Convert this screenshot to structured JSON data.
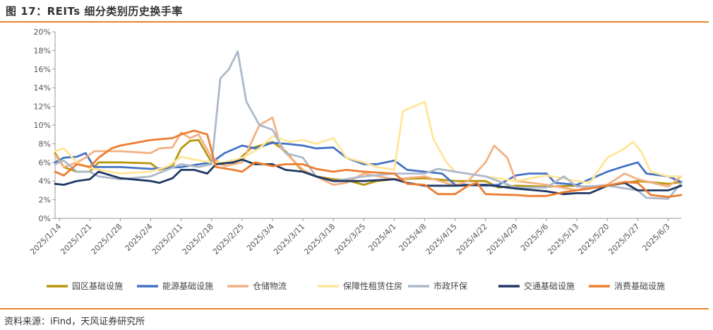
{
  "figure": {
    "title": "图 17：REITs 细分类别历史换手率",
    "source": "资料来源：iFind，天风证券研究所"
  },
  "chart_data": {
    "type": "line",
    "ylim": [
      0,
      20
    ],
    "y_ticks": [
      "0%",
      "2%",
      "4%",
      "6%",
      "8%",
      "10%",
      "12%",
      "14%",
      "16%",
      "18%",
      "20%"
    ],
    "x_ticks": [
      "2025/1/14",
      "2025/1/21",
      "2025/1/28",
      "2025/2/4",
      "2025/2/11",
      "2025/2/18",
      "2025/2/25",
      "2025/3/4",
      "2025/3/11",
      "2025/3/18",
      "2025/3/25",
      "2025/4/1",
      "2025/4/8",
      "2025/4/15",
      "2025/4/22",
      "2025/4/29",
      "2025/5/6",
      "2025/5/13",
      "2025/5/20",
      "2025/5/27",
      "2025/6/3"
    ],
    "x_range": [
      "2025/1/13",
      "2025/6/6"
    ],
    "grid": false,
    "legend_position": "bottom",
    "series": [
      {
        "name": "园区基础设施",
        "color": "#B8960C",
        "points": [
          [
            "2025/1/13",
            7.0
          ],
          [
            "2025/1/15",
            5.5
          ],
          [
            "2025/1/18",
            5.0
          ],
          [
            "2025/1/21",
            5.0
          ],
          [
            "2025/1/23",
            6.0
          ],
          [
            "2025/1/28",
            6.0
          ],
          [
            "2025/2/4",
            5.9
          ],
          [
            "2025/2/6",
            5.2
          ],
          [
            "2025/2/9",
            5.6
          ],
          [
            "2025/2/11",
            7.5
          ],
          [
            "2025/2/13",
            8.3
          ],
          [
            "2025/2/15",
            8.4
          ],
          [
            "2025/2/18",
            6.0
          ],
          [
            "2025/2/20",
            5.8
          ],
          [
            "2025/2/24",
            6.2
          ],
          [
            "2025/2/27",
            7.5
          ],
          [
            "2025/3/4",
            8.2
          ],
          [
            "2025/3/7",
            7.2
          ],
          [
            "2025/3/11",
            5.0
          ],
          [
            "2025/3/14",
            4.5
          ],
          [
            "2025/3/18",
            4.2
          ],
          [
            "2025/3/21",
            4.1
          ],
          [
            "2025/3/25",
            3.6
          ],
          [
            "2025/3/28",
            4.0
          ],
          [
            "2025/4/1",
            4.2
          ],
          [
            "2025/4/8",
            4.3
          ],
          [
            "2025/4/15",
            4.0
          ],
          [
            "2025/4/22",
            4.0
          ],
          [
            "2025/4/25",
            3.3
          ],
          [
            "2025/4/29",
            3.5
          ],
          [
            "2025/5/6",
            3.4
          ],
          [
            "2025/5/13",
            3.5
          ],
          [
            "2025/5/16",
            3.3
          ],
          [
            "2025/5/20",
            3.5
          ],
          [
            "2025/5/24",
            3.8
          ],
          [
            "2025/5/27",
            4.0
          ],
          [
            "2025/6/3",
            3.7
          ],
          [
            "2025/6/6",
            3.9
          ]
        ]
      },
      {
        "name": "能源基础设施",
        "color": "#4472C4",
        "points": [
          [
            "2025/1/13",
            6.0
          ],
          [
            "2025/1/15",
            6.5
          ],
          [
            "2025/1/18",
            6.6
          ],
          [
            "2025/1/20",
            7.0
          ],
          [
            "2025/1/22",
            5.5
          ],
          [
            "2025/1/28",
            5.5
          ],
          [
            "2025/2/4",
            5.3
          ],
          [
            "2025/2/11",
            5.5
          ],
          [
            "2025/2/18",
            6.0
          ],
          [
            "2025/2/21",
            7.0
          ],
          [
            "2025/2/25",
            7.8
          ],
          [
            "2025/2/28",
            7.5
          ],
          [
            "2025/3/4",
            8.1
          ],
          [
            "2025/3/7",
            8.0
          ],
          [
            "2025/3/11",
            7.8
          ],
          [
            "2025/3/14",
            7.5
          ],
          [
            "2025/3/18",
            7.6
          ],
          [
            "2025/3/21",
            6.5
          ],
          [
            "2025/3/25",
            5.8
          ],
          [
            "2025/3/28",
            5.8
          ],
          [
            "2025/4/1",
            6.2
          ],
          [
            "2025/4/4",
            5.2
          ],
          [
            "2025/4/8",
            5.0
          ],
          [
            "2025/4/12",
            4.8
          ],
          [
            "2025/4/15",
            3.6
          ],
          [
            "2025/4/18",
            3.6
          ],
          [
            "2025/4/22",
            3.5
          ],
          [
            "2025/4/25",
            3.6
          ],
          [
            "2025/4/29",
            4.6
          ],
          [
            "2025/5/2",
            4.8
          ],
          [
            "2025/5/6",
            4.8
          ],
          [
            "2025/5/8",
            3.8
          ],
          [
            "2025/5/13",
            3.6
          ],
          [
            "2025/5/16",
            4.2
          ],
          [
            "2025/5/20",
            5.0
          ],
          [
            "2025/5/24",
            5.6
          ],
          [
            "2025/5/27",
            6.0
          ],
          [
            "2025/5/29",
            4.8
          ],
          [
            "2025/6/3",
            4.5
          ],
          [
            "2025/6/6",
            3.9
          ]
        ]
      },
      {
        "name": "仓储物流",
        "color": "#F4B183",
        "points": [
          [
            "2025/1/13",
            6.8
          ],
          [
            "2025/1/15",
            5.5
          ],
          [
            "2025/1/18",
            6.0
          ],
          [
            "2025/1/20",
            6.5
          ],
          [
            "2025/1/22",
            7.2
          ],
          [
            "2025/1/28",
            7.2
          ],
          [
            "2025/2/4",
            7.0
          ],
          [
            "2025/2/6",
            7.5
          ],
          [
            "2025/2/9",
            7.6
          ],
          [
            "2025/2/11",
            9.2
          ],
          [
            "2025/2/13",
            8.6
          ],
          [
            "2025/2/15",
            9.0
          ],
          [
            "2025/2/18",
            6.5
          ],
          [
            "2025/2/21",
            5.6
          ],
          [
            "2025/2/25",
            6.0
          ],
          [
            "2025/2/27",
            8.0
          ],
          [
            "2025/3/1",
            10.0
          ],
          [
            "2025/3/4",
            10.8
          ],
          [
            "2025/3/6",
            7.5
          ],
          [
            "2025/3/11",
            5.2
          ],
          [
            "2025/3/14",
            4.5
          ],
          [
            "2025/3/18",
            3.6
          ],
          [
            "2025/3/21",
            3.8
          ],
          [
            "2025/3/25",
            4.8
          ],
          [
            "2025/4/1",
            4.2
          ],
          [
            "2025/4/8",
            4.5
          ],
          [
            "2025/4/15",
            3.5
          ],
          [
            "2025/4/18",
            4.0
          ],
          [
            "2025/4/22",
            6.0
          ],
          [
            "2025/4/24",
            7.8
          ],
          [
            "2025/4/27",
            6.5
          ],
          [
            "2025/4/29",
            4.0
          ],
          [
            "2025/5/6",
            3.6
          ],
          [
            "2025/5/13",
            3.0
          ],
          [
            "2025/5/16",
            3.4
          ],
          [
            "2025/5/20",
            3.6
          ],
          [
            "2025/5/24",
            4.8
          ],
          [
            "2025/5/27",
            4.2
          ],
          [
            "2025/6/3",
            3.4
          ],
          [
            "2025/6/6",
            4.5
          ]
        ]
      },
      {
        "name": "保障性租赁住房",
        "color": "#FFE699",
        "points": [
          [
            "2025/1/13",
            7.2
          ],
          [
            "2025/1/15",
            7.5
          ],
          [
            "2025/1/18",
            6.0
          ],
          [
            "2025/1/21",
            5.4
          ],
          [
            "2025/1/28",
            4.8
          ],
          [
            "2025/2/4",
            5.0
          ],
          [
            "2025/2/8",
            5.6
          ],
          [
            "2025/2/11",
            6.6
          ],
          [
            "2025/2/14",
            6.3
          ],
          [
            "2025/2/18",
            6.0
          ],
          [
            "2025/2/21",
            6.0
          ],
          [
            "2025/2/25",
            6.5
          ],
          [
            "2025/3/1",
            7.5
          ],
          [
            "2025/3/4",
            8.8
          ],
          [
            "2025/3/8",
            8.2
          ],
          [
            "2025/3/11",
            8.4
          ],
          [
            "2025/3/14",
            8.0
          ],
          [
            "2025/3/18",
            8.6
          ],
          [
            "2025/3/21",
            6.5
          ],
          [
            "2025/3/25",
            6.0
          ],
          [
            "2025/3/28",
            5.5
          ],
          [
            "2025/4/1",
            5.2
          ],
          [
            "2025/4/3",
            11.5
          ],
          [
            "2025/4/8",
            12.5
          ],
          [
            "2025/4/10",
            8.5
          ],
          [
            "2025/4/13",
            6.0
          ],
          [
            "2025/4/15",
            5.0
          ],
          [
            "2025/4/22",
            4.5
          ],
          [
            "2025/4/29",
            4.0
          ],
          [
            "2025/5/6",
            4.6
          ],
          [
            "2025/5/13",
            4.0
          ],
          [
            "2025/5/16",
            3.8
          ],
          [
            "2025/5/20",
            6.5
          ],
          [
            "2025/5/24",
            7.5
          ],
          [
            "2025/5/26",
            8.2
          ],
          [
            "2025/5/28",
            7.0
          ],
          [
            "2025/5/30",
            5.0
          ],
          [
            "2025/6/3",
            4.5
          ],
          [
            "2025/6/6",
            4.5
          ]
        ]
      },
      {
        "name": "市政环保",
        "color": "#ADB9CA",
        "points": [
          [
            "2025/1/13",
            5.8
          ],
          [
            "2025/1/15",
            6.2
          ],
          [
            "2025/1/18",
            5.0
          ],
          [
            "2025/1/21",
            5.0
          ],
          [
            "2025/1/23",
            4.5
          ],
          [
            "2025/1/28",
            4.2
          ],
          [
            "2025/2/4",
            4.5
          ],
          [
            "2025/2/11",
            5.8
          ],
          [
            "2025/2/15",
            5.5
          ],
          [
            "2025/2/18",
            5.8
          ],
          [
            "2025/2/20",
            15.0
          ],
          [
            "2025/2/22",
            16.0
          ],
          [
            "2025/2/24",
            17.9
          ],
          [
            "2025/2/26",
            12.5
          ],
          [
            "2025/3/1",
            10.0
          ],
          [
            "2025/3/4",
            9.5
          ],
          [
            "2025/3/7",
            7.0
          ],
          [
            "2025/3/11",
            6.5
          ],
          [
            "2025/3/14",
            4.5
          ],
          [
            "2025/3/18",
            4.0
          ],
          [
            "2025/3/25",
            4.5
          ],
          [
            "2025/4/1",
            4.8
          ],
          [
            "2025/4/8",
            4.8
          ],
          [
            "2025/4/11",
            5.3
          ],
          [
            "2025/4/15",
            5.0
          ],
          [
            "2025/4/22",
            4.5
          ],
          [
            "2025/4/29",
            3.3
          ],
          [
            "2025/5/6",
            3.3
          ],
          [
            "2025/5/10",
            4.5
          ],
          [
            "2025/5/13",
            3.4
          ],
          [
            "2025/5/20",
            3.5
          ],
          [
            "2025/5/27",
            3.0
          ],
          [
            "2025/5/29",
            2.2
          ],
          [
            "2025/6/3",
            2.1
          ],
          [
            "2025/6/6",
            3.8
          ]
        ]
      },
      {
        "name": "交通基础设施",
        "color": "#1F3864",
        "points": [
          [
            "2025/1/13",
            3.7
          ],
          [
            "2025/1/15",
            3.6
          ],
          [
            "2025/1/18",
            4.0
          ],
          [
            "2025/1/21",
            4.2
          ],
          [
            "2025/1/23",
            5.0
          ],
          [
            "2025/1/28",
            4.3
          ],
          [
            "2025/2/4",
            4.0
          ],
          [
            "2025/2/6",
            3.8
          ],
          [
            "2025/2/9",
            4.3
          ],
          [
            "2025/2/11",
            5.2
          ],
          [
            "2025/2/14",
            5.2
          ],
          [
            "2025/2/17",
            4.8
          ],
          [
            "2025/2/19",
            5.8
          ],
          [
            "2025/2/23",
            6.0
          ],
          [
            "2025/2/25",
            6.3
          ],
          [
            "2025/2/28",
            5.8
          ],
          [
            "2025/3/4",
            5.8
          ],
          [
            "2025/3/7",
            5.2
          ],
          [
            "2025/3/11",
            5.0
          ],
          [
            "2025/3/14",
            4.5
          ],
          [
            "2025/3/18",
            4.0
          ],
          [
            "2025/3/25",
            4.0
          ],
          [
            "2025/4/1",
            4.2
          ],
          [
            "2025/4/4",
            3.8
          ],
          [
            "2025/4/8",
            3.5
          ],
          [
            "2025/4/15",
            3.5
          ],
          [
            "2025/4/22",
            3.6
          ],
          [
            "2025/4/29",
            3.2
          ],
          [
            "2025/5/6",
            2.9
          ],
          [
            "2025/5/10",
            2.6
          ],
          [
            "2025/5/13",
            2.7
          ],
          [
            "2025/5/16",
            2.7
          ],
          [
            "2025/5/20",
            3.5
          ],
          [
            "2025/5/24",
            3.8
          ],
          [
            "2025/5/27",
            3.0
          ],
          [
            "2025/6/3",
            3.0
          ],
          [
            "2025/6/6",
            3.5
          ]
        ]
      },
      {
        "name": "消费基础设施",
        "color": "#ED7D31",
        "points": [
          [
            "2025/1/13",
            5.0
          ],
          [
            "2025/1/15",
            4.6
          ],
          [
            "2025/1/18",
            5.8
          ],
          [
            "2025/1/21",
            5.5
          ],
          [
            "2025/1/23",
            6.5
          ],
          [
            "2025/1/26",
            7.5
          ],
          [
            "2025/1/28",
            7.8
          ],
          [
            "2025/2/4",
            8.4
          ],
          [
            "2025/2/9",
            8.6
          ],
          [
            "2025/2/11",
            9.0
          ],
          [
            "2025/2/14",
            9.4
          ],
          [
            "2025/2/17",
            9.0
          ],
          [
            "2025/2/19",
            5.5
          ],
          [
            "2025/2/23",
            5.2
          ],
          [
            "2025/2/25",
            5.0
          ],
          [
            "2025/2/28",
            6.0
          ],
          [
            "2025/3/4",
            5.6
          ],
          [
            "2025/3/7",
            5.8
          ],
          [
            "2025/3/11",
            5.8
          ],
          [
            "2025/3/14",
            5.3
          ],
          [
            "2025/3/18",
            5.0
          ],
          [
            "2025/3/21",
            5.2
          ],
          [
            "2025/3/25",
            5.0
          ],
          [
            "2025/4/1",
            4.8
          ],
          [
            "2025/4/4",
            3.7
          ],
          [
            "2025/4/8",
            3.6
          ],
          [
            "2025/4/11",
            2.6
          ],
          [
            "2025/4/15",
            2.6
          ],
          [
            "2025/4/18",
            3.5
          ],
          [
            "2025/4/20",
            3.8
          ],
          [
            "2025/4/22",
            2.6
          ],
          [
            "2025/4/29",
            2.5
          ],
          [
            "2025/5/2",
            2.4
          ],
          [
            "2025/5/6",
            2.4
          ],
          [
            "2025/5/10",
            2.8
          ],
          [
            "2025/5/13",
            3.0
          ],
          [
            "2025/5/16",
            3.2
          ],
          [
            "2025/5/20",
            3.5
          ],
          [
            "2025/5/24",
            3.9
          ],
          [
            "2025/5/27",
            3.8
          ],
          [
            "2025/5/30",
            2.5
          ],
          [
            "2025/6/3",
            2.3
          ],
          [
            "2025/6/6",
            2.5
          ]
        ]
      }
    ]
  }
}
